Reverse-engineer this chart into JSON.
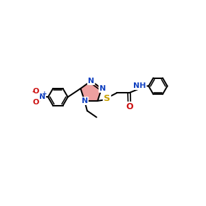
{
  "bg_color": "#ffffff",
  "bond_color": "#000000",
  "bond_width": 1.5,
  "N_color": "#1040c0",
  "O_color": "#cc1010",
  "S_color": "#c8a000",
  "triazole_fill": "#e88080",
  "font_size": 8.0,
  "fig_w": 3.0,
  "fig_h": 3.0,
  "dpi": 100,
  "xlim": [
    0,
    12
  ],
  "ylim": [
    0,
    10
  ]
}
